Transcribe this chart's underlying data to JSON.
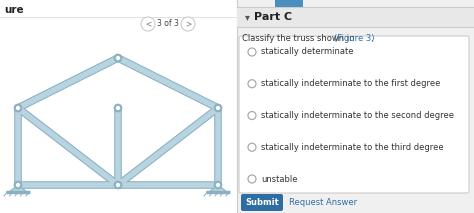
{
  "bg_color": "#f0f0f0",
  "left_panel_bg": "#ffffff",
  "right_panel_bg": "#f0f0f0",
  "divider_color": "#cccccc",
  "part_c_label": "Part C",
  "nav_text": "3 of 3",
  "figure_label": "ure",
  "options": [
    "statically determinate",
    "statically indeterminate to the first degree",
    "statically indeterminate to the second degree",
    "statically indeterminate to the third degree",
    "unstable"
  ],
  "submit_btn_color": "#2e6da4",
  "submit_text": "Submit",
  "request_answer_text": "Request Answer",
  "request_answer_color": "#2e6da4",
  "truss_fill": "#b8d4e0",
  "truss_stroke": "#8ab0c0",
  "truss_lw": 4.0,
  "node_r": 3.0,
  "part_c_header_bg": "#e8e8e8",
  "part_c_text_color": "#222222",
  "top_btn_color": "#4a8fc0",
  "question_color": "#333333",
  "link_color": "#2e6da4",
  "radio_border": "#aaaaaa",
  "option_text_color": "#333333",
  "option_fontsize": 6.0,
  "header_fontsize": 8.0,
  "question_fontsize": 6.0,
  "submit_fontsize": 6.0
}
